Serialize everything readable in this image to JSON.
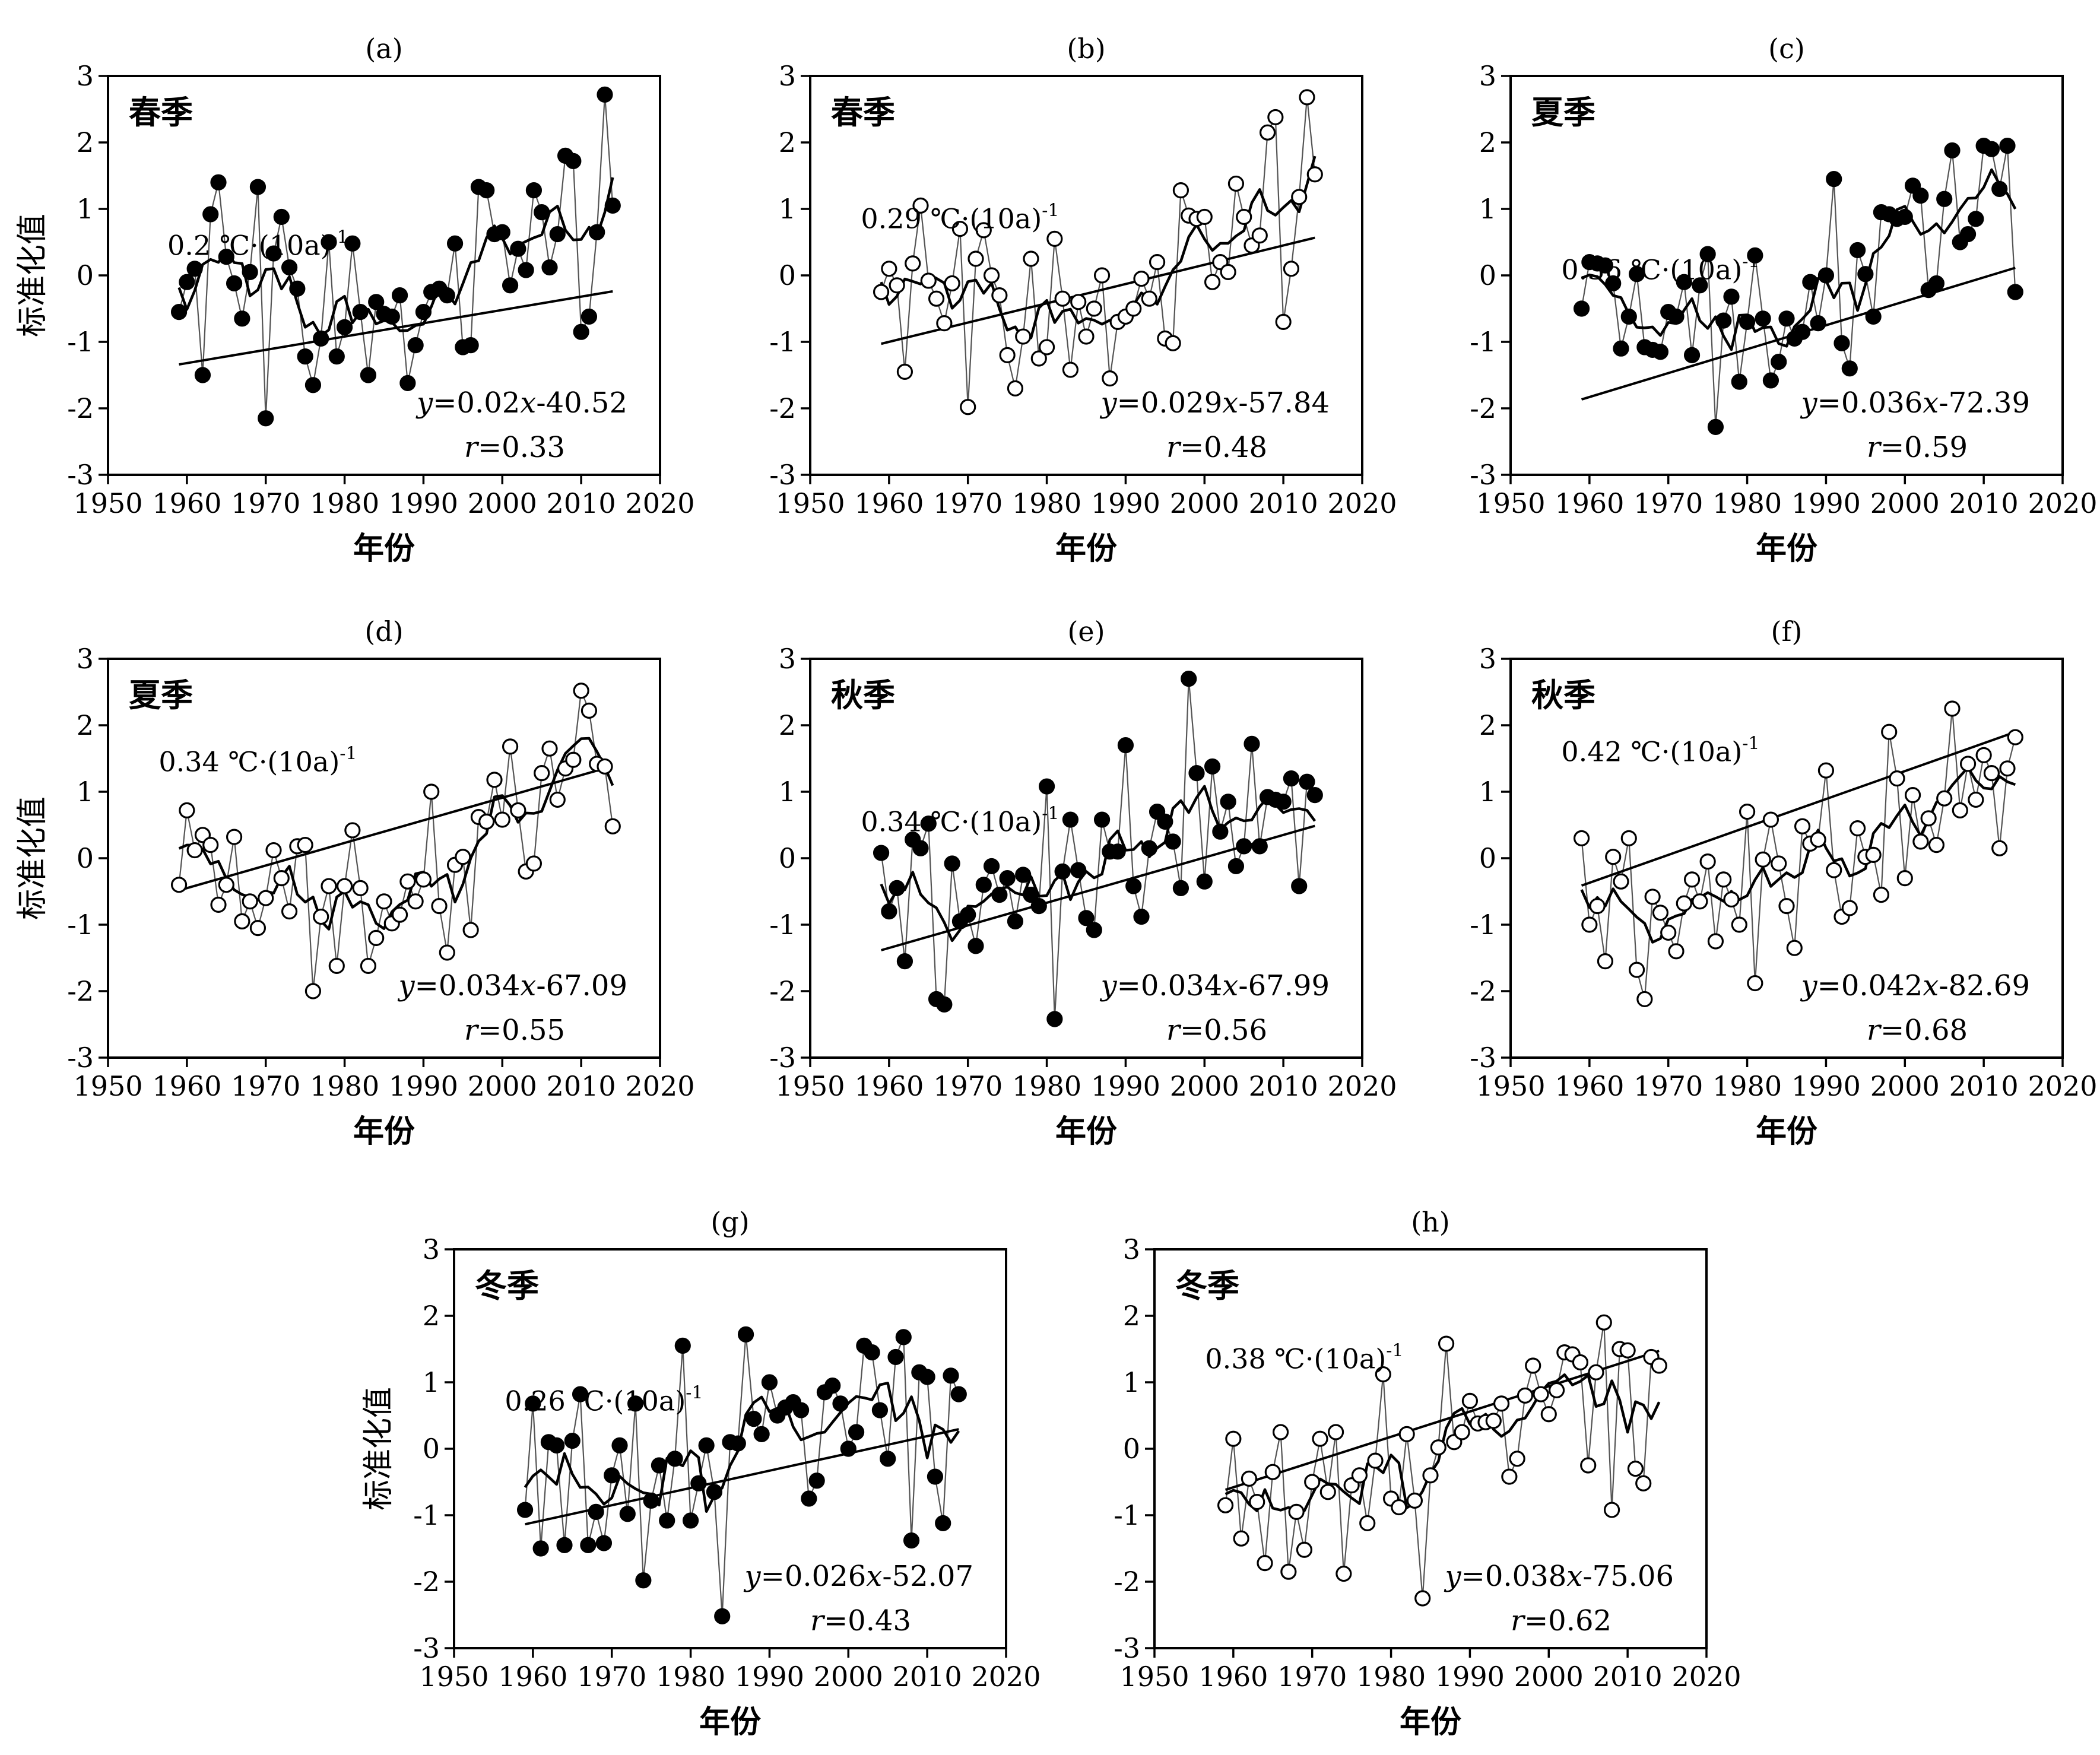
{
  "chart_data": [
    {
      "label": "(a)",
      "type": "scatter",
      "season": "春季",
      "filled": true,
      "trend": "0.2 ℃·(10a)",
      "trend_sup": "-1",
      "eq_y": "y",
      "eq_mid": "=0.02",
      "eq_x": "x",
      "eq_rest": "-40.52",
      "r_label": "r",
      "r_rest": "=0.33",
      "slope": 0.02,
      "intercept": -40.52,
      "xlabel": "年份",
      "ylabel": "标准化值",
      "xlim": [
        1950,
        2020
      ],
      "ylim": [
        -3,
        3
      ],
      "xticks": [
        1950,
        1960,
        1970,
        1980,
        1990,
        2000,
        2010,
        2020
      ],
      "yticks": [
        -3,
        -2,
        -1,
        0,
        1,
        2,
        3
      ],
      "x_start": 1959,
      "values": [
        -0.55,
        -0.1,
        0.1,
        -1.5,
        0.92,
        1.4,
        0.28,
        -0.12,
        -0.65,
        0.05,
        1.33,
        -2.15,
        0.33,
        0.88,
        0.12,
        -0.2,
        -1.22,
        -1.65,
        -0.95,
        0.5,
        -1.22,
        -0.78,
        0.48,
        -0.55,
        -1.5,
        -0.4,
        -0.58,
        -0.62,
        -0.3,
        -1.62,
        -1.05,
        -0.55,
        -0.25,
        -0.2,
        -0.3,
        0.48,
        -1.08,
        -1.05,
        1.33,
        1.28,
        0.62,
        0.65,
        -0.15,
        0.4,
        0.08,
        1.28,
        0.95,
        0.12,
        0.62,
        1.8,
        1.72,
        -0.85,
        -0.62,
        0.65,
        2.72,
        1.05
      ]
    },
    {
      "label": "(b)",
      "type": "scatter",
      "season": "春季",
      "filled": false,
      "trend": "0.29 ℃·(10a)",
      "trend_sup": "-1",
      "eq_y": "y",
      "eq_mid": "=0.029",
      "eq_x": "x",
      "eq_rest": "-57.84",
      "r_label": "r",
      "r_rest": "=0.48",
      "slope": 0.029,
      "intercept": -57.84,
      "xlabel": "年份",
      "ylabel": "",
      "xlim": [
        1950,
        2020
      ],
      "ylim": [
        -3,
        3
      ],
      "xticks": [
        1950,
        1960,
        1970,
        1980,
        1990,
        2000,
        2010,
        2020
      ],
      "yticks": [
        -3,
        -2,
        -1,
        0,
        1,
        2,
        3
      ],
      "x_start": 1959,
      "values": [
        -0.25,
        0.1,
        -0.15,
        -1.45,
        0.18,
        1.05,
        -0.08,
        -0.35,
        -0.72,
        -0.12,
        0.7,
        -1.98,
        0.25,
        0.68,
        0.0,
        -0.3,
        -1.2,
        -1.7,
        -0.92,
        0.25,
        -1.25,
        -1.08,
        0.55,
        -0.35,
        -1.42,
        -0.4,
        -0.92,
        -0.5,
        0.0,
        -1.55,
        -0.7,
        -0.62,
        -0.5,
        -0.05,
        -0.35,
        0.2,
        -0.95,
        -1.02,
        1.28,
        0.9,
        0.85,
        0.88,
        -0.1,
        0.2,
        0.05,
        1.38,
        0.88,
        0.45,
        0.6,
        2.15,
        2.38,
        -0.7,
        0.1,
        1.18,
        2.68,
        1.52
      ]
    },
    {
      "label": "(c)",
      "type": "scatter",
      "season": "夏季",
      "filled": true,
      "trend": "0.36 ℃·(10a)",
      "trend_sup": "-1",
      "eq_y": "y",
      "eq_mid": "=0.036",
      "eq_x": "x",
      "eq_rest": "-72.39",
      "r_label": "r",
      "r_rest": "=0.59",
      "slope": 0.036,
      "intercept": -72.39,
      "xlabel": "年份",
      "ylabel": "",
      "xlim": [
        1950,
        2020
      ],
      "ylim": [
        -3,
        3
      ],
      "xticks": [
        1950,
        1960,
        1970,
        1980,
        1990,
        2000,
        2010,
        2020
      ],
      "yticks": [
        -3,
        -2,
        -1,
        0,
        1,
        2,
        3
      ],
      "x_start": 1959,
      "values": [
        -0.5,
        0.2,
        0.18,
        0.15,
        -0.12,
        -1.1,
        -0.62,
        0.02,
        -1.08,
        -1.12,
        -1.15,
        -0.55,
        -0.62,
        -0.1,
        -1.2,
        -0.15,
        0.32,
        -2.28,
        -0.68,
        -0.32,
        -1.6,
        -0.7,
        0.3,
        -0.65,
        -1.58,
        -1.3,
        -0.65,
        -0.95,
        -0.85,
        -0.1,
        -0.72,
        0.0,
        1.45,
        -1.02,
        -1.4,
        0.38,
        0.02,
        -0.62,
        0.95,
        0.92,
        0.85,
        0.88,
        1.35,
        1.2,
        -0.22,
        -0.12,
        1.15,
        1.88,
        0.5,
        0.62,
        0.85,
        1.95,
        1.9,
        1.3,
        1.95,
        -0.25
      ]
    },
    {
      "label": "(d)",
      "type": "scatter",
      "season": "夏季",
      "filled": false,
      "trend": "0.34 ℃·(10a)",
      "trend_sup": "-1",
      "eq_y": "y",
      "eq_mid": "=0.034",
      "eq_x": "x",
      "eq_rest": "-67.09",
      "r_label": "r",
      "r_rest": "=0.55",
      "slope": 0.034,
      "intercept": -67.09,
      "xlabel": "年份",
      "ylabel": "标准化值",
      "xlim": [
        1950,
        2020
      ],
      "ylim": [
        -3,
        3
      ],
      "xticks": [
        1950,
        1960,
        1970,
        1980,
        1990,
        2000,
        2010,
        2020
      ],
      "yticks": [
        -3,
        -2,
        -1,
        0,
        1,
        2,
        3
      ],
      "x_start": 1959,
      "values": [
        -0.4,
        0.72,
        0.12,
        0.35,
        0.2,
        -0.7,
        -0.4,
        0.32,
        -0.95,
        -0.65,
        -1.05,
        -0.6,
        0.12,
        -0.3,
        -0.8,
        0.18,
        0.2,
        -2.0,
        -0.88,
        -0.42,
        -1.62,
        -0.42,
        0.42,
        -0.45,
        -1.62,
        -1.2,
        -0.65,
        -0.98,
        -0.85,
        -0.35,
        -0.65,
        -0.32,
        1.0,
        -0.72,
        -1.42,
        -0.1,
        0.02,
        -1.08,
        0.62,
        0.55,
        1.18,
        0.58,
        1.68,
        0.72,
        -0.2,
        -0.08,
        1.28,
        1.65,
        0.88,
        1.35,
        1.48,
        2.52,
        2.22,
        1.42,
        1.38,
        0.48
      ]
    },
    {
      "label": "(e)",
      "type": "scatter",
      "season": "秋季",
      "filled": true,
      "trend": "0.34 ℃·(10a)",
      "trend_sup": "-1",
      "eq_y": "y",
      "eq_mid": "=0.034",
      "eq_x": "x",
      "eq_rest": "-67.99",
      "r_label": "r",
      "r_rest": "=0.56",
      "slope": 0.034,
      "intercept": -67.99,
      "xlabel": "年份",
      "ylabel": "",
      "xlim": [
        1950,
        2020
      ],
      "ylim": [
        -3,
        3
      ],
      "xticks": [
        1950,
        1960,
        1970,
        1980,
        1990,
        2000,
        2010,
        2020
      ],
      "yticks": [
        -3,
        -2,
        -1,
        0,
        1,
        2,
        3
      ],
      "x_start": 1959,
      "values": [
        0.08,
        -0.8,
        -0.45,
        -1.55,
        0.28,
        0.15,
        0.52,
        -2.12,
        -2.2,
        -0.08,
        -0.95,
        -0.85,
        -1.32,
        -0.4,
        -0.12,
        -0.55,
        -0.3,
        -0.95,
        -0.25,
        -0.55,
        -0.72,
        1.08,
        -2.42,
        -0.2,
        0.58,
        -0.18,
        -0.9,
        -1.08,
        0.58,
        0.1,
        0.1,
        1.7,
        -0.42,
        -0.88,
        0.15,
        0.7,
        0.55,
        0.25,
        -0.45,
        2.7,
        1.28,
        -0.35,
        1.38,
        0.4,
        0.85,
        -0.12,
        0.18,
        1.72,
        0.18,
        0.92,
        0.88,
        0.85,
        1.2,
        -0.42,
        1.15,
        0.95
      ]
    },
    {
      "label": "(f)",
      "type": "scatter",
      "season": "秋季",
      "filled": false,
      "trend": "0.42 ℃·(10a)",
      "trend_sup": "-1",
      "eq_y": "y",
      "eq_mid": "=0.042",
      "eq_x": "x",
      "eq_rest": "-82.69",
      "r_label": "r",
      "r_rest": "=0.68",
      "slope": 0.042,
      "intercept": -82.69,
      "xlabel": "年份",
      "ylabel": "",
      "xlim": [
        1950,
        2020
      ],
      "ylim": [
        -3,
        3
      ],
      "xticks": [
        1950,
        1960,
        1970,
        1980,
        1990,
        2000,
        2010,
        2020
      ],
      "yticks": [
        -3,
        -2,
        -1,
        0,
        1,
        2,
        3
      ],
      "x_start": 1959,
      "values": [
        0.3,
        -1.0,
        -0.72,
        -1.55,
        0.02,
        -0.35,
        0.3,
        -1.68,
        -2.12,
        -0.58,
        -0.82,
        -1.12,
        -1.4,
        -0.68,
        -0.32,
        -0.65,
        -0.05,
        -1.25,
        -0.32,
        -0.62,
        -1.0,
        0.7,
        -1.88,
        -0.02,
        0.58,
        -0.08,
        -0.72,
        -1.35,
        0.48,
        0.22,
        0.28,
        1.32,
        -0.18,
        -0.88,
        -0.75,
        0.45,
        0.02,
        0.05,
        -0.55,
        1.9,
        1.2,
        -0.3,
        0.95,
        0.25,
        0.6,
        0.2,
        0.9,
        2.25,
        0.72,
        1.42,
        0.88,
        1.55,
        1.28,
        0.15,
        1.35,
        1.82
      ]
    },
    {
      "label": "(g)",
      "type": "scatter",
      "season": "冬季",
      "filled": true,
      "trend": "0.26 ℃·(10a)",
      "trend_sup": "-1",
      "eq_y": "y",
      "eq_mid": "=0.026",
      "eq_x": "x",
      "eq_rest": "-52.07",
      "r_label": "r",
      "r_rest": "=0.43",
      "slope": 0.026,
      "intercept": -52.07,
      "xlabel": "年份",
      "ylabel": "标准化值",
      "xlim": [
        1950,
        2020
      ],
      "ylim": [
        -3,
        3
      ],
      "xticks": [
        1950,
        1960,
        1970,
        1980,
        1990,
        2000,
        2010,
        2020
      ],
      "yticks": [
        -3,
        -2,
        -1,
        0,
        1,
        2,
        3
      ],
      "x_start": 1959,
      "values": [
        -0.92,
        0.68,
        -1.5,
        0.1,
        0.05,
        -1.45,
        0.12,
        0.82,
        -1.45,
        -0.95,
        -1.42,
        -0.4,
        0.05,
        -0.98,
        0.68,
        -1.98,
        -0.78,
        -0.25,
        -1.08,
        -0.15,
        1.55,
        -1.08,
        -0.52,
        0.05,
        -0.65,
        -2.52,
        0.1,
        0.08,
        1.72,
        0.45,
        0.22,
        1.0,
        0.5,
        0.62,
        0.7,
        0.58,
        -0.75,
        -0.48,
        0.85,
        0.95,
        0.68,
        0.0,
        0.25,
        1.55,
        1.45,
        0.58,
        -0.15,
        1.38,
        1.68,
        -1.38,
        1.15,
        1.08,
        -0.42,
        -1.12,
        1.1,
        0.82
      ]
    },
    {
      "label": "(h)",
      "type": "scatter",
      "season": "冬季",
      "filled": false,
      "trend": "0.38 ℃·(10a)",
      "trend_sup": "-1",
      "eq_y": "y",
      "eq_mid": "=0.038",
      "eq_x": "x",
      "eq_rest": "-75.06",
      "r_label": "r",
      "r_rest": "=0.62",
      "slope": 0.038,
      "intercept": -75.06,
      "xlabel": "年份",
      "ylabel": "",
      "xlim": [
        1950,
        2020
      ],
      "ylim": [
        -3,
        3
      ],
      "xticks": [
        1950,
        1960,
        1970,
        1980,
        1990,
        2000,
        2010,
        2020
      ],
      "yticks": [
        -3,
        -2,
        -1,
        0,
        1,
        2,
        3
      ],
      "x_start": 1959,
      "values": [
        -0.85,
        0.15,
        -1.35,
        -0.45,
        -0.8,
        -1.72,
        -0.35,
        0.25,
        -1.85,
        -0.95,
        -1.52,
        -0.5,
        0.15,
        -0.65,
        0.25,
        -1.88,
        -0.55,
        -0.4,
        -1.12,
        -0.18,
        1.12,
        -0.75,
        -0.88,
        0.22,
        -0.78,
        -2.25,
        -0.4,
        0.02,
        1.58,
        0.1,
        0.25,
        0.72,
        0.38,
        0.4,
        0.42,
        0.68,
        -0.42,
        -0.15,
        0.8,
        1.25,
        0.82,
        0.52,
        0.88,
        1.45,
        1.42,
        1.3,
        -0.25,
        1.15,
        1.9,
        -0.92,
        1.5,
        1.48,
        -0.3,
        -0.52,
        1.38,
        1.25
      ]
    }
  ]
}
